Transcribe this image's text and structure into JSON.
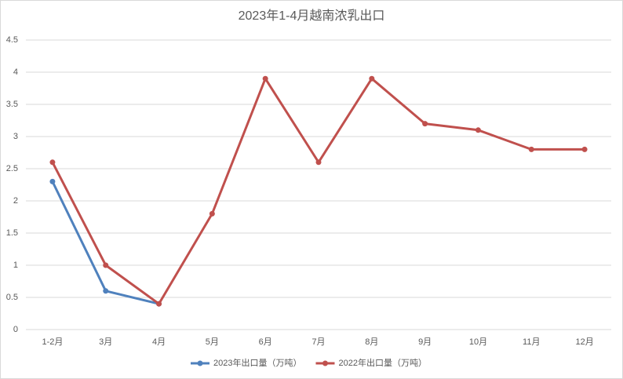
{
  "chart_data": {
    "type": "line",
    "title": "2023年1-4月越南浓乳出口",
    "categories": [
      "1-2月",
      "3月",
      "4月",
      "5月",
      "6月",
      "7月",
      "8月",
      "9月",
      "10月",
      "11月",
      "12月"
    ],
    "series": [
      {
        "name": "2023年出口量（万吨）",
        "color": "#4f81bd",
        "values": [
          2.3,
          0.6,
          0.4,
          null,
          null,
          null,
          null,
          null,
          null,
          null,
          null
        ]
      },
      {
        "name": "2022年出口量（万吨）",
        "color": "#c0504d",
        "values": [
          2.6,
          1.0,
          0.4,
          1.8,
          3.9,
          2.6,
          3.9,
          3.2,
          3.1,
          2.8,
          2.8
        ]
      }
    ],
    "ylim": [
      0,
      4.5
    ],
    "yticks": [
      0,
      0.5,
      1,
      1.5,
      2,
      2.5,
      3,
      3.5,
      4,
      4.5
    ],
    "grid": true,
    "legend": "bottom"
  }
}
